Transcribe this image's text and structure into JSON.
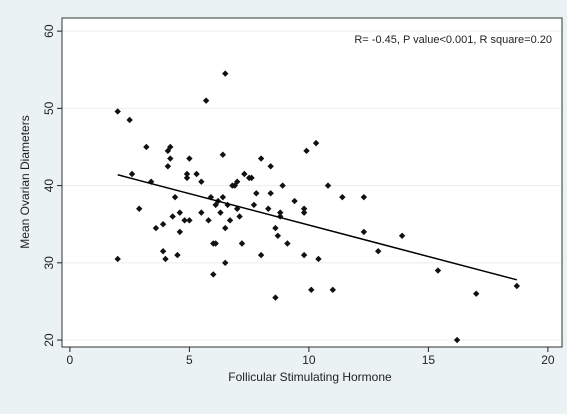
{
  "chart_data": {
    "type": "scatter",
    "annotation": "R= -0.45, P value<0.001, R square=0.20",
    "x_label": "Follicular Stimulating Hormone",
    "y_label": "Mean Ovarian Diameters",
    "color": "#111111",
    "grid": true,
    "xlim": [
      -0.33,
      20.59
    ],
    "xticks": [
      0,
      5,
      10,
      15,
      20
    ],
    "ylim": [
      19.1,
      61.7
    ],
    "yticks": [
      20,
      30,
      40,
      50,
      60
    ],
    "x": [
      2.0,
      2.0,
      2.5,
      2.6,
      2.9,
      3.2,
      3.4,
      3.6,
      3.9,
      3.9,
      4.0,
      4.1,
      4.1,
      4.2,
      4.2,
      4.3,
      4.4,
      4.5,
      4.6,
      4.6,
      4.8,
      4.9,
      4.9,
      5.0,
      5.0,
      5.3,
      5.5,
      5.5,
      5.7,
      5.8,
      5.9,
      6.0,
      6.0,
      6.1,
      6.1,
      6.2,
      6.3,
      6.4,
      6.4,
      6.5,
      6.5,
      6.5,
      6.6,
      6.7,
      6.8,
      6.9,
      7.0,
      7.0,
      7.1,
      7.2,
      7.3,
      7.5,
      7.6,
      7.7,
      7.8,
      8.0,
      8.0,
      8.3,
      8.4,
      8.4,
      8.6,
      8.6,
      8.7,
      8.8,
      8.8,
      8.9,
      9.1,
      9.4,
      9.8,
      9.8,
      9.8,
      9.9,
      10.1,
      10.3,
      10.4,
      10.8,
      11.0,
      11.4,
      12.3,
      12.3,
      12.9,
      13.9,
      15.4,
      16.2,
      17.0,
      18.7
    ],
    "values": [
      49.6,
      30.5,
      48.5,
      41.5,
      37,
      45,
      40.5,
      34.5,
      35,
      31.5,
      30.5,
      44.5,
      42.5,
      45,
      43.5,
      36,
      38.5,
      31,
      34,
      36.5,
      35.5,
      41.5,
      41,
      43.5,
      35.5,
      41.5,
      40.5,
      36.5,
      51,
      35.5,
      38.5,
      28.5,
      32.5,
      32.5,
      37.5,
      38,
      36.5,
      44,
      38.5,
      54.5,
      34.5,
      30,
      37.5,
      35.5,
      40,
      40,
      37,
      40.5,
      36,
      32.5,
      41.5,
      41,
      41,
      37.5,
      39,
      31,
      43.5,
      37,
      42.5,
      39,
      34.5,
      25.5,
      33.5,
      36.5,
      36,
      40,
      32.5,
      38,
      37,
      36.5,
      31,
      44.5,
      26.5,
      45.5,
      30.5,
      40,
      26.5,
      38.5,
      38.5,
      34,
      31.5,
      33.5,
      29,
      20,
      26,
      27
    ],
    "fit": {
      "x": [
        2.0,
        18.7
      ],
      "values": [
        41.4,
        27.8
      ],
      "color": "#000000"
    }
  }
}
